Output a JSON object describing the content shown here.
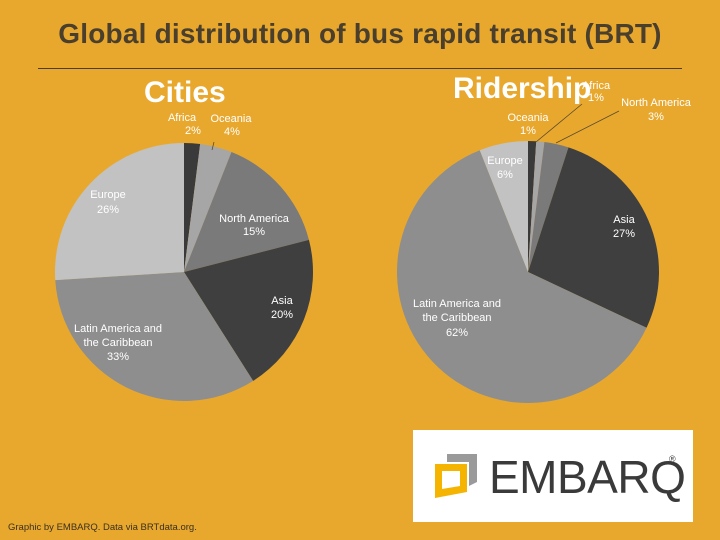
{
  "title": "Global distribution of bus rapid transit (BRT)",
  "footer": "Graphic by EMBARQ. Data via BRTdata.org.",
  "logo": {
    "text": "EMBARQ",
    "reg": "®",
    "colors": [
      "#F5B400",
      "#9A9A9A"
    ]
  },
  "chart_data": [
    {
      "type": "pie",
      "title": "Cities",
      "slices": [
        {
          "label": "Africa",
          "value": 2,
          "display": "2%",
          "color": "#3A3A3A"
        },
        {
          "label": "Oceania",
          "value": 4,
          "display": "4%",
          "color": "#A6A6A6"
        },
        {
          "label": "North America",
          "value": 15,
          "display": "15%",
          "color": "#7A7A7A"
        },
        {
          "label": "Asia",
          "value": 20,
          "display": "20%",
          "color": "#3F3F3F"
        },
        {
          "label": "Latin America and the Caribbean",
          "value": 33,
          "display": "33%",
          "color": "#8E8E8E"
        },
        {
          "label": "Europe",
          "value": 26,
          "display": "26%",
          "color": "#C2C2C2"
        }
      ]
    },
    {
      "type": "pie",
      "title": "Ridership",
      "slices": [
        {
          "label": "Africa",
          "value": 1,
          "display": "1%",
          "color": "#3A3A3A"
        },
        {
          "label": "Oceania",
          "value": 1,
          "display": "1%",
          "color": "#A6A6A6"
        },
        {
          "label": "North America",
          "value": 3,
          "display": "3%",
          "color": "#7A7A7A"
        },
        {
          "label": "Asia",
          "value": 27,
          "display": "27%",
          "color": "#3F3F3F"
        },
        {
          "label": "Latin America and the Caribbean",
          "value": 62,
          "display": "62%",
          "color": "#8E8E8E"
        },
        {
          "label": "Europe",
          "value": 6,
          "display": "6%",
          "color": "#C2C2C2"
        }
      ]
    }
  ]
}
